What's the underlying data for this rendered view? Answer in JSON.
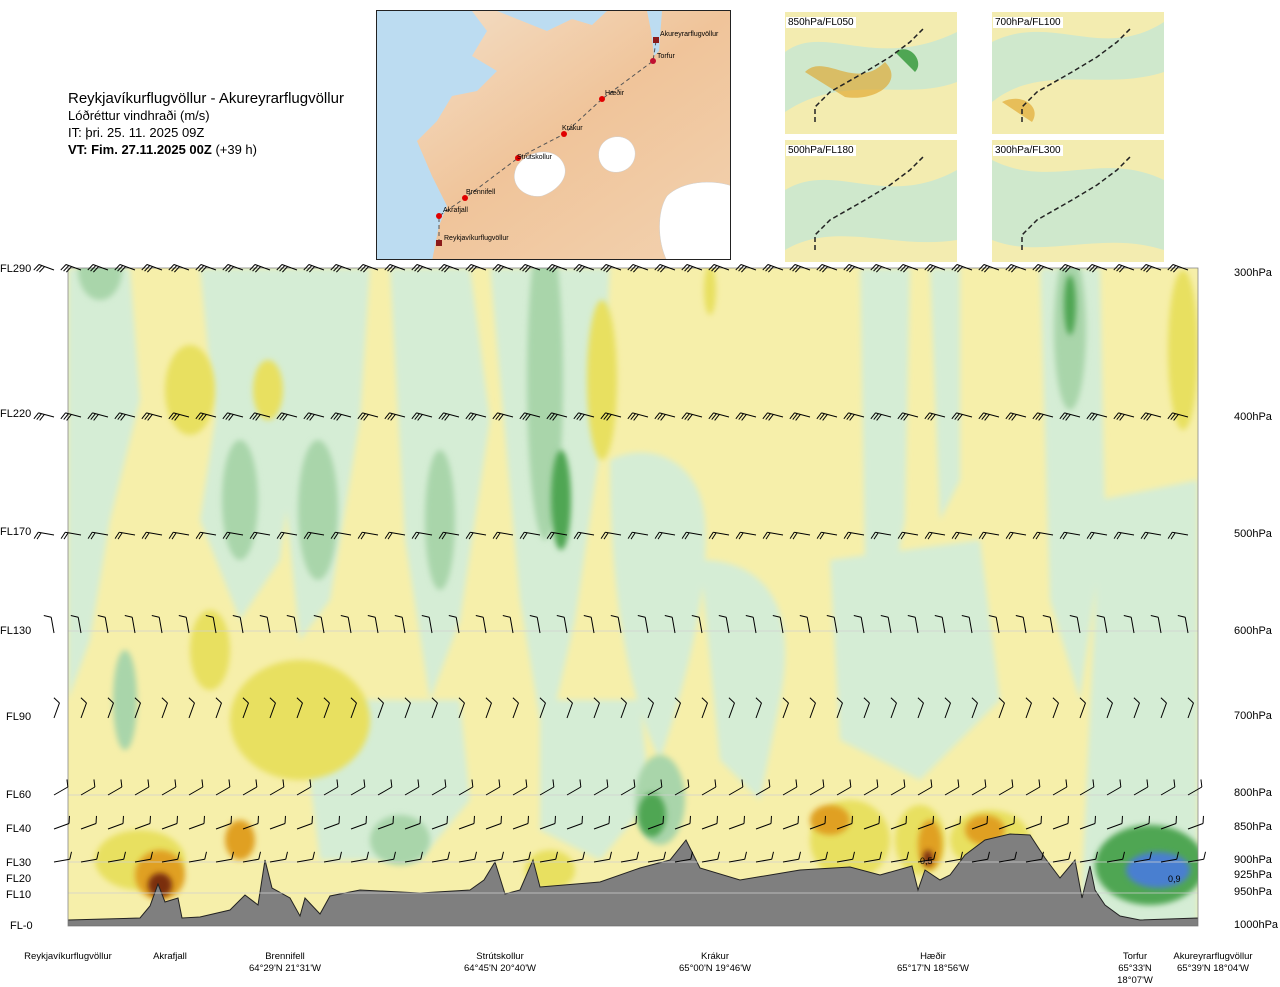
{
  "header": {
    "title": "Reykjavíkurflugvöllur - Akureyrarflugvöllur",
    "subtitle": "Lóðréttur vindhraði (m/s)",
    "issue_time": "IT: þri. 25. 11. 2025 09Z",
    "valid_time_bold": "VT: Fim. 27.11.2025 00Z",
    "valid_time_suffix": "(+39 h)"
  },
  "map": {
    "waypoints": [
      "Akureyrarflugvöllur",
      "Torfur",
      "Hæðir",
      "Krákur",
      "Strútskollur",
      "Brennifell",
      "Akrafjall",
      "Reykjavíkurflugvöllur"
    ]
  },
  "mini_panels": [
    "850hPa/FL050",
    "700hPa/FL100",
    "500hPa/FL180",
    "300hPa/FL300"
  ],
  "chart_data": {
    "type": "heatmap",
    "title": "Lóðréttur vindhraði (m/s)",
    "y_left_ticks": [
      "FL290",
      "FL220",
      "FL170",
      "FL130",
      "FL90",
      "FL60",
      "FL40",
      "FL30",
      "FL20",
      "FL10",
      "FL-0"
    ],
    "y_right_ticks": [
      "300hPa",
      "400hPa",
      "500hPa",
      "600hPa",
      "700hPa",
      "800hPa",
      "850hPa",
      "900hPa",
      "925hPa",
      "950hPa",
      "1000hPa"
    ],
    "x_locations": [
      {
        "name": "Reykjavíkurflugvöllur",
        "coord": ""
      },
      {
        "name": "Akrafjall",
        "coord": ""
      },
      {
        "name": "Brennifell",
        "coord": "64°29'N 21°31'W"
      },
      {
        "name": "Strútskollur",
        "coord": "64°45'N 20°40'W"
      },
      {
        "name": "Krákur",
        "coord": "65°00'N 19°46'W"
      },
      {
        "name": "Hæðir",
        "coord": "65°17'N 18°56'W"
      },
      {
        "name": "Torfur",
        "coord": "65°33'N 18°07'W"
      },
      {
        "name": "Akureyrarflugvöllur",
        "coord": "65°39'N 18°04'W"
      }
    ],
    "annotations": [
      "0,5",
      "0,9"
    ],
    "color_legend": {
      "strong_sink": "#7a2e0e",
      "sink": "#e0a020",
      "weak_sink": "#e8e060",
      "near_zero_neg": "#f6efaa",
      "near_zero": "#ffffe8",
      "weak_rise": "#d5edd5",
      "rise": "#a9d5aa",
      "strong_rise": "#4fa653",
      "very_strong_rise": "#4a7fd0",
      "terrain": "#7f7f7f"
    }
  }
}
